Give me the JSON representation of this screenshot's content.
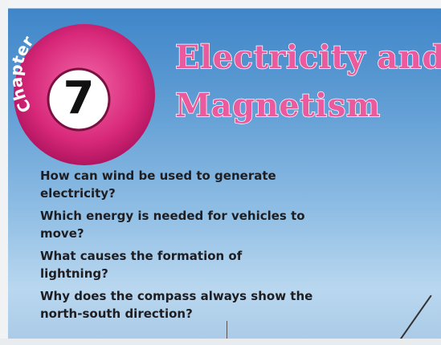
{
  "chapter": {
    "label": "Chapter",
    "number": 7
  },
  "title_lines": [
    "Electricity and",
    "Magnetism"
  ],
  "questions": [
    "How can wind be used to generate electricity?",
    "Which energy is needed for vehicles to move?",
    "What causes the formation of lightning?",
    "Why does the compass always show the north-south direction?"
  ]
}
